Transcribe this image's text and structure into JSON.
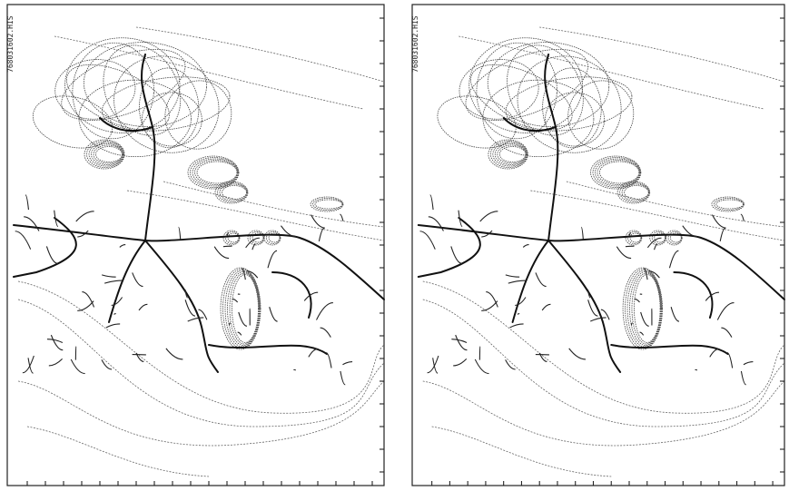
{
  "panels": [
    {
      "label": "768031602.HIS"
    },
    {
      "label": "768031602.HIS"
    }
  ]
}
